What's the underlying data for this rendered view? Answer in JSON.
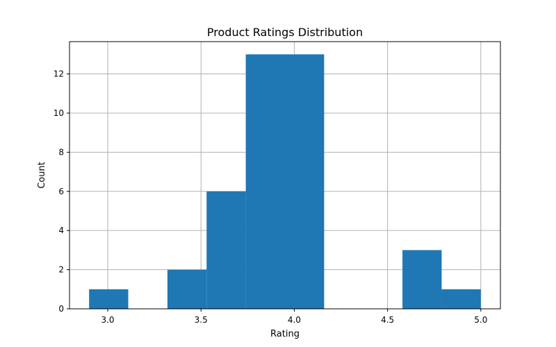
{
  "chart_data": {
    "type": "bar",
    "histogram": true,
    "title": "Product Ratings Distribution",
    "xlabel": "Rating",
    "ylabel": "Count",
    "bin_edges": [
      2.9,
      3.11,
      3.32,
      3.53,
      3.74,
      3.95,
      4.16,
      4.37,
      4.58,
      4.79,
      5.0
    ],
    "counts": [
      1,
      0,
      2,
      6,
      13,
      13,
      0,
      0,
      3,
      1
    ],
    "xlim": [
      2.795,
      5.105
    ],
    "ylim": [
      0,
      13.65
    ],
    "xticks": [
      3.0,
      3.5,
      4.0,
      4.5,
      5.0
    ],
    "xtick_labels": [
      "3.0",
      "3.5",
      "4.0",
      "4.5",
      "5.0"
    ],
    "yticks": [
      0,
      2,
      4,
      6,
      8,
      10,
      12
    ],
    "ytick_labels": [
      "0",
      "2",
      "4",
      "6",
      "8",
      "10",
      "12"
    ],
    "grid": true,
    "bar_color": "#1f77b4"
  }
}
